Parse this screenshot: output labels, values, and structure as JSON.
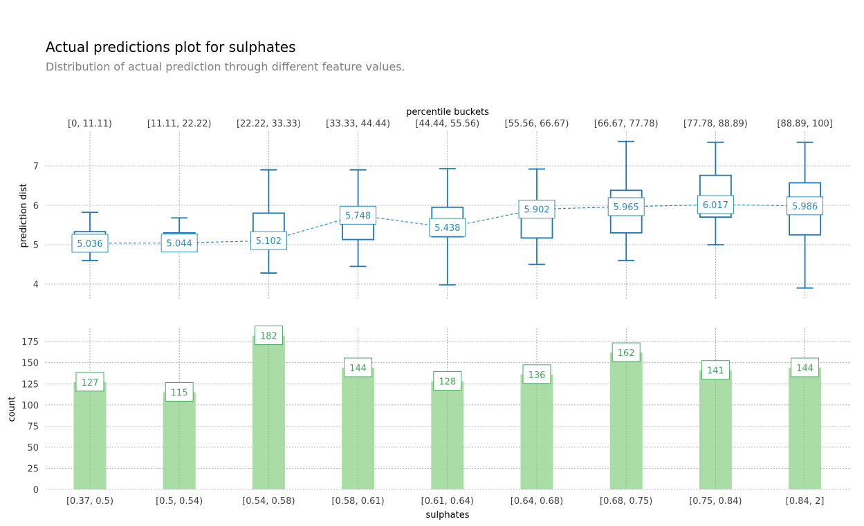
{
  "title": "Actual predictions plot for sulphates",
  "subtitle": "Distribution of actual prediction through different feature values.",
  "chart_data": [
    {
      "type": "box",
      "ylabel": "prediction dist",
      "top_axis_label": "percentile buckets",
      "percentile_buckets": [
        "[0, 11.11)",
        "[11.11, 22.22)",
        "[22.22, 33.33)",
        "[33.33, 44.44)",
        "[44.44, 55.56)",
        "[55.56, 66.67)",
        "[66.67, 77.78)",
        "[77.78, 88.89)",
        "[88.89, 100]"
      ],
      "yticks": [
        4,
        5,
        6,
        7
      ],
      "ylim": [
        3.6,
        7.85
      ],
      "boxes": [
        {
          "whislo": 4.6,
          "q1": 4.9,
          "med": 5.0,
          "q3": 5.33,
          "whishi": 5.82
        },
        {
          "whislo": 4.9,
          "q1": 4.93,
          "med": 5.0,
          "q3": 5.3,
          "whishi": 5.68
        },
        {
          "whislo": 4.28,
          "q1": 5.0,
          "med": 5.05,
          "q3": 5.8,
          "whishi": 6.9
        },
        {
          "whislo": 4.45,
          "q1": 5.13,
          "med": 5.8,
          "q3": 5.92,
          "whishi": 6.9
        },
        {
          "whislo": 3.98,
          "q1": 5.2,
          "med": 5.5,
          "q3": 5.95,
          "whishi": 6.93
        },
        {
          "whislo": 4.5,
          "q1": 5.17,
          "med": 5.9,
          "q3": 6.02,
          "whishi": 6.92
        },
        {
          "whislo": 4.6,
          "q1": 5.3,
          "med": 5.9,
          "q3": 6.38,
          "whishi": 7.62
        },
        {
          "whislo": 5.0,
          "q1": 5.7,
          "med": 6.0,
          "q3": 6.76,
          "whishi": 7.6
        },
        {
          "whislo": 3.9,
          "q1": 5.25,
          "med": 6.0,
          "q3": 6.57,
          "whishi": 7.6
        }
      ],
      "means": [
        5.036,
        5.044,
        5.102,
        5.748,
        5.438,
        5.902,
        5.965,
        6.017,
        5.986
      ],
      "mean_labels": [
        "5.036",
        "5.044",
        "5.102",
        "5.748",
        "5.438",
        "5.902",
        "5.965",
        "6.017",
        "5.986"
      ],
      "color": "#1f77b4",
      "label_color": "#2b8cbe"
    },
    {
      "type": "bar",
      "xlabel": "sulphates",
      "ylabel": "count",
      "categories": [
        "[0.37, 0.5)",
        "[0.5, 0.54)",
        "[0.54, 0.58)",
        "[0.58, 0.61)",
        "[0.61, 0.64)",
        "[0.64, 0.68)",
        "[0.68, 0.75)",
        "[0.75, 0.84)",
        "[0.84, 2]"
      ],
      "values": [
        127,
        115,
        182,
        144,
        128,
        136,
        162,
        141,
        144
      ],
      "value_labels": [
        "127",
        "115",
        "182",
        "144",
        "128",
        "136",
        "162",
        "141",
        "144"
      ],
      "yticks": [
        0,
        25,
        50,
        75,
        100,
        125,
        150,
        175
      ],
      "ylim": [
        0,
        193
      ],
      "color": "#a1d99b",
      "label_color": "#41ab5d"
    }
  ]
}
